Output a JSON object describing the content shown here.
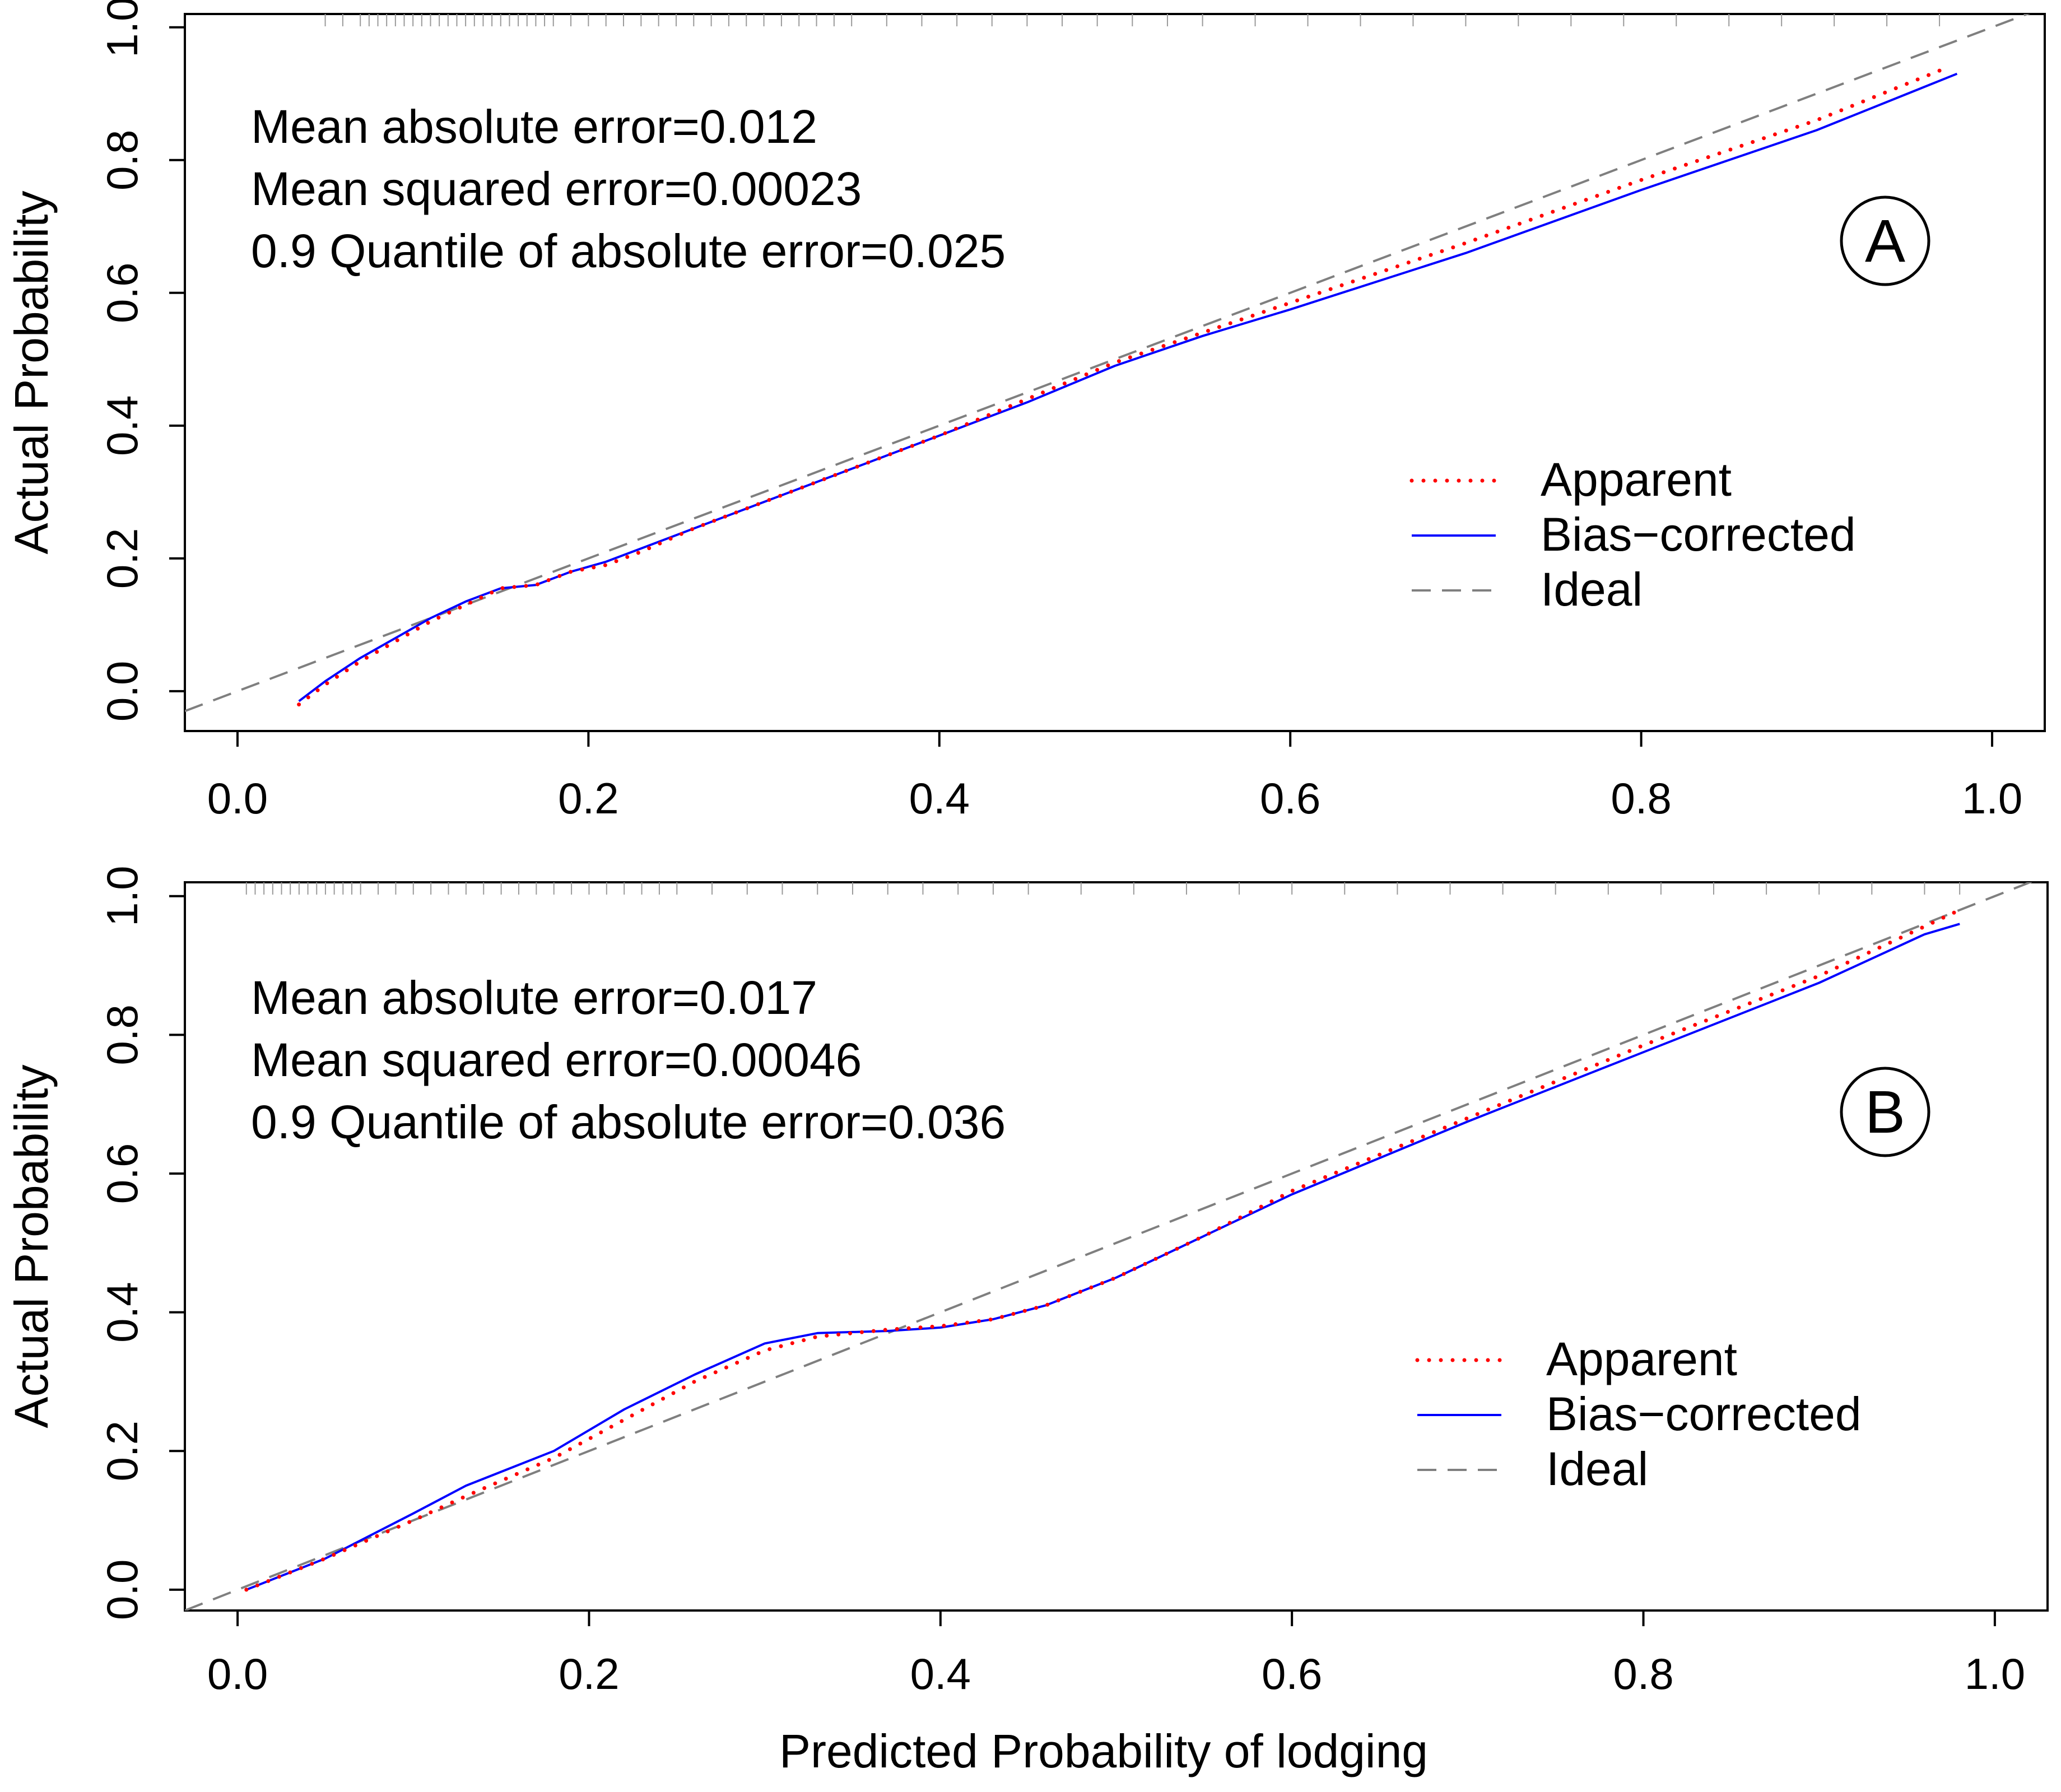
{
  "figure": {
    "xlabel": "Predicted Probability of lodging"
  },
  "chart_data": [
    {
      "type": "line",
      "panel_label": "A",
      "ylabel": "Actual Probability",
      "xlim": [
        -0.03,
        1.03
      ],
      "ylim": [
        -0.06,
        1.02
      ],
      "xticks": [
        0.0,
        0.2,
        0.4,
        0.6,
        0.8,
        1.0
      ],
      "xtick_labels": [
        "0.0",
        "0.2",
        "0.4",
        "0.6",
        "0.8",
        "1.0"
      ],
      "yticks": [
        0.0,
        0.2,
        0.4,
        0.6,
        0.8,
        1.0
      ],
      "ytick_labels": [
        "0.0",
        "0.2",
        "0.4",
        "0.6",
        "0.8",
        "1.0"
      ],
      "stats": [
        "Mean absolute error=0.012",
        "Mean squared error=0.00023",
        "0.9 Quantile of absolute error=0.025"
      ],
      "legend_position": "right",
      "legend": [
        "Apparent",
        "Bias−corrected",
        "Ideal"
      ],
      "series": [
        {
          "name": "Apparent",
          "style": "dotted",
          "color": "#ff0000",
          "x": [
            0.035,
            0.05,
            0.07,
            0.09,
            0.11,
            0.13,
            0.15,
            0.17,
            0.19,
            0.21,
            0.23,
            0.26,
            0.3,
            0.35,
            0.4,
            0.45,
            0.5,
            0.55,
            0.6,
            0.7,
            0.8,
            0.9,
            0.975
          ],
          "y": [
            -0.02,
            0.01,
            0.045,
            0.075,
            0.105,
            0.13,
            0.155,
            0.16,
            0.18,
            0.19,
            0.21,
            0.245,
            0.285,
            0.335,
            0.385,
            0.44,
            0.495,
            0.54,
            0.585,
            0.675,
            0.77,
            0.86,
            0.94
          ]
        },
        {
          "name": "Bias−corrected",
          "style": "solid",
          "color": "#0000ff",
          "x": [
            0.035,
            0.05,
            0.07,
            0.09,
            0.11,
            0.13,
            0.15,
            0.17,
            0.19,
            0.21,
            0.23,
            0.26,
            0.3,
            0.35,
            0.4,
            0.45,
            0.5,
            0.55,
            0.6,
            0.7,
            0.8,
            0.9,
            0.98
          ],
          "y": [
            -0.015,
            0.015,
            0.05,
            0.08,
            0.11,
            0.135,
            0.155,
            0.16,
            0.18,
            0.195,
            0.215,
            0.245,
            0.285,
            0.335,
            0.385,
            0.435,
            0.49,
            0.535,
            0.575,
            0.66,
            0.755,
            0.845,
            0.93
          ]
        },
        {
          "name": "Ideal",
          "style": "dashed",
          "color": "#7f7f7f",
          "x": [
            -0.03,
            1.03
          ],
          "y": [
            -0.03,
            1.03
          ]
        }
      ],
      "rug_x": [
        0.05,
        0.06,
        0.07,
        0.075,
        0.08,
        0.085,
        0.09,
        0.095,
        0.1,
        0.105,
        0.11,
        0.115,
        0.12,
        0.125,
        0.13,
        0.135,
        0.14,
        0.145,
        0.15,
        0.155,
        0.16,
        0.165,
        0.17,
        0.175,
        0.18,
        0.19,
        0.2,
        0.21,
        0.22,
        0.23,
        0.24,
        0.25,
        0.26,
        0.27,
        0.28,
        0.29,
        0.3,
        0.31,
        0.32,
        0.33,
        0.34,
        0.35,
        0.37,
        0.39,
        0.41,
        0.43,
        0.45,
        0.47,
        0.49,
        0.51,
        0.53,
        0.55,
        0.58,
        0.61,
        0.64,
        0.67,
        0.7,
        0.73,
        0.76,
        0.79,
        0.82,
        0.85,
        0.88,
        0.91,
        0.94,
        0.97
      ]
    },
    {
      "type": "line",
      "panel_label": "B",
      "ylabel": "Actual Probability",
      "xlim": [
        -0.03,
        1.03
      ],
      "ylim": [
        -0.03,
        1.02
      ],
      "xticks": [
        0.0,
        0.2,
        0.4,
        0.6,
        0.8,
        1.0
      ],
      "xtick_labels": [
        "0.0",
        "0.2",
        "0.4",
        "0.6",
        "0.8",
        "1.0"
      ],
      "yticks": [
        0.0,
        0.2,
        0.4,
        0.6,
        0.8,
        1.0
      ],
      "ytick_labels": [
        "0.0",
        "0.2",
        "0.4",
        "0.6",
        "0.8",
        "1.0"
      ],
      "stats": [
        "Mean absolute error=0.017",
        "Mean squared error=0.00046",
        "0.9 Quantile of absolute error=0.036"
      ],
      "legend_position": "right",
      "legend": [
        "Apparent",
        "Bias−corrected",
        "Ideal"
      ],
      "series": [
        {
          "name": "Apparent",
          "style": "dotted",
          "color": "#ff0000",
          "x": [
            0.005,
            0.05,
            0.1,
            0.13,
            0.18,
            0.22,
            0.26,
            0.3,
            0.33,
            0.37,
            0.4,
            0.43,
            0.46,
            0.5,
            0.55,
            0.6,
            0.7,
            0.8,
            0.9,
            0.98
          ],
          "y": [
            0.0,
            0.045,
            0.1,
            0.135,
            0.19,
            0.245,
            0.3,
            0.345,
            0.365,
            0.375,
            0.38,
            0.39,
            0.41,
            0.45,
            0.51,
            0.575,
            0.68,
            0.785,
            0.885,
            0.98
          ]
        },
        {
          "name": "Bias−corrected",
          "style": "solid",
          "color": "#0000ff",
          "x": [
            0.005,
            0.05,
            0.1,
            0.13,
            0.18,
            0.22,
            0.26,
            0.3,
            0.33,
            0.37,
            0.4,
            0.43,
            0.46,
            0.5,
            0.55,
            0.6,
            0.7,
            0.8,
            0.9,
            0.96,
            0.98
          ],
          "y": [
            0.0,
            0.045,
            0.11,
            0.15,
            0.2,
            0.26,
            0.31,
            0.355,
            0.37,
            0.373,
            0.378,
            0.39,
            0.41,
            0.45,
            0.51,
            0.57,
            0.675,
            0.775,
            0.875,
            0.945,
            0.96
          ]
        },
        {
          "name": "Ideal",
          "style": "dashed",
          "color": "#7f7f7f",
          "x": [
            -0.03,
            1.03
          ],
          "y": [
            -0.03,
            1.03
          ]
        }
      ],
      "rug_x": [
        0.005,
        0.01,
        0.015,
        0.02,
        0.025,
        0.03,
        0.035,
        0.04,
        0.045,
        0.05,
        0.055,
        0.06,
        0.065,
        0.07,
        0.08,
        0.09,
        0.1,
        0.11,
        0.12,
        0.13,
        0.14,
        0.15,
        0.16,
        0.17,
        0.18,
        0.19,
        0.2,
        0.21,
        0.22,
        0.23,
        0.24,
        0.25,
        0.27,
        0.29,
        0.31,
        0.33,
        0.35,
        0.37,
        0.39,
        0.41,
        0.43,
        0.45,
        0.48,
        0.51,
        0.54,
        0.57,
        0.6,
        0.63,
        0.66,
        0.69,
        0.72,
        0.75,
        0.78,
        0.81,
        0.84,
        0.87,
        0.9,
        0.93,
        0.96,
        0.98
      ]
    }
  ]
}
